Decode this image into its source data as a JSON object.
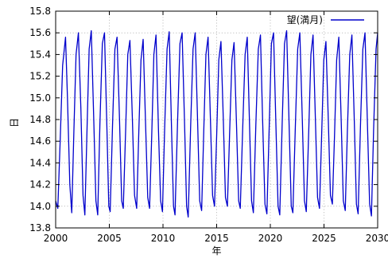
{
  "chart_data": {
    "type": "line",
    "title": "",
    "xlabel": "年",
    "ylabel": "日",
    "xlim": [
      2000,
      2030
    ],
    "ylim": [
      13.8,
      15.8
    ],
    "x_ticks": [
      "2000",
      "2005",
      "2010",
      "2015",
      "2020",
      "2025",
      "2030"
    ],
    "y_ticks": [
      "13.8",
      "14.0",
      "14.2",
      "14.4",
      "14.6",
      "14.8",
      "15.0",
      "15.2",
      "15.4",
      "15.6",
      "15.8"
    ],
    "grid": true,
    "legend_position": "top-right",
    "series": [
      {
        "name": "望(満月)",
        "color": "#0000cc",
        "points": [
          [
            2000.0,
            14.05
          ],
          [
            2000.2,
            13.98
          ],
          [
            2000.42,
            14.6
          ],
          [
            2000.65,
            15.3
          ],
          [
            2000.92,
            15.56
          ],
          [
            2001.1,
            15.0
          ],
          [
            2001.32,
            14.2
          ],
          [
            2001.5,
            13.94
          ],
          [
            2001.7,
            14.7
          ],
          [
            2001.9,
            15.4
          ],
          [
            2002.12,
            15.6
          ],
          [
            2002.35,
            14.9
          ],
          [
            2002.55,
            14.1
          ],
          [
            2002.72,
            13.92
          ],
          [
            2002.92,
            14.7
          ],
          [
            2003.12,
            15.45
          ],
          [
            2003.32,
            15.62
          ],
          [
            2003.55,
            14.8
          ],
          [
            2003.75,
            14.05
          ],
          [
            2003.92,
            13.92
          ],
          [
            2004.12,
            14.75
          ],
          [
            2004.35,
            15.5
          ],
          [
            2004.55,
            15.6
          ],
          [
            2004.78,
            14.7
          ],
          [
            2004.95,
            14.0
          ],
          [
            2005.08,
            13.95
          ],
          [
            2005.3,
            14.75
          ],
          [
            2005.52,
            15.45
          ],
          [
            2005.72,
            15.56
          ],
          [
            2005.95,
            14.8
          ],
          [
            2006.15,
            14.05
          ],
          [
            2006.3,
            13.98
          ],
          [
            2006.52,
            14.7
          ],
          [
            2006.72,
            15.4
          ],
          [
            2006.92,
            15.53
          ],
          [
            2007.15,
            14.8
          ],
          [
            2007.35,
            14.1
          ],
          [
            2007.55,
            13.98
          ],
          [
            2007.75,
            14.7
          ],
          [
            2007.95,
            15.35
          ],
          [
            2008.15,
            15.54
          ],
          [
            2008.38,
            14.75
          ],
          [
            2008.58,
            14.08
          ],
          [
            2008.75,
            13.98
          ],
          [
            2008.95,
            14.65
          ],
          [
            2009.15,
            15.4
          ],
          [
            2009.35,
            15.58
          ],
          [
            2009.58,
            14.7
          ],
          [
            2009.78,
            14.05
          ],
          [
            2009.95,
            13.95
          ],
          [
            2010.15,
            14.7
          ],
          [
            2010.38,
            15.45
          ],
          [
            2010.58,
            15.61
          ],
          [
            2010.8,
            14.7
          ],
          [
            2010.98,
            14.0
          ],
          [
            2011.12,
            13.92
          ],
          [
            2011.35,
            14.75
          ],
          [
            2011.58,
            15.5
          ],
          [
            2011.78,
            15.6
          ],
          [
            2012.0,
            14.8
          ],
          [
            2012.2,
            14.0
          ],
          [
            2012.35,
            13.9
          ],
          [
            2012.58,
            14.75
          ],
          [
            2012.8,
            15.45
          ],
          [
            2013.0,
            15.6
          ],
          [
            2013.22,
            14.8
          ],
          [
            2013.42,
            14.05
          ],
          [
            2013.6,
            13.96
          ],
          [
            2013.8,
            14.7
          ],
          [
            2014.0,
            15.4
          ],
          [
            2014.2,
            15.56
          ],
          [
            2014.42,
            14.8
          ],
          [
            2014.62,
            14.1
          ],
          [
            2014.8,
            14.0
          ],
          [
            2015.0,
            14.65
          ],
          [
            2015.2,
            15.35
          ],
          [
            2015.4,
            15.52
          ],
          [
            2015.62,
            14.8
          ],
          [
            2015.82,
            14.08
          ],
          [
            2016.0,
            14.0
          ],
          [
            2016.2,
            14.65
          ],
          [
            2016.42,
            15.35
          ],
          [
            2016.62,
            15.51
          ],
          [
            2016.85,
            14.75
          ],
          [
            2017.05,
            14.05
          ],
          [
            2017.2,
            13.98
          ],
          [
            2017.42,
            14.7
          ],
          [
            2017.65,
            15.4
          ],
          [
            2017.85,
            15.56
          ],
          [
            2018.05,
            14.8
          ],
          [
            2018.25,
            14.05
          ],
          [
            2018.42,
            13.94
          ],
          [
            2018.65,
            14.75
          ],
          [
            2018.88,
            15.45
          ],
          [
            2019.08,
            15.58
          ],
          [
            2019.28,
            14.8
          ],
          [
            2019.5,
            14.02
          ],
          [
            2019.68,
            13.93
          ],
          [
            2019.9,
            14.75
          ],
          [
            2020.1,
            15.5
          ],
          [
            2020.3,
            15.6
          ],
          [
            2020.52,
            14.75
          ],
          [
            2020.72,
            14.0
          ],
          [
            2020.88,
            13.92
          ],
          [
            2021.1,
            14.75
          ],
          [
            2021.32,
            15.5
          ],
          [
            2021.52,
            15.62
          ],
          [
            2021.75,
            14.75
          ],
          [
            2021.95,
            14.0
          ],
          [
            2022.1,
            13.94
          ],
          [
            2022.32,
            14.7
          ],
          [
            2022.55,
            15.45
          ],
          [
            2022.75,
            15.6
          ],
          [
            2022.98,
            14.8
          ],
          [
            2023.18,
            14.05
          ],
          [
            2023.35,
            13.95
          ],
          [
            2023.58,
            14.7
          ],
          [
            2023.78,
            15.4
          ],
          [
            2023.98,
            15.58
          ],
          [
            2024.2,
            14.8
          ],
          [
            2024.4,
            14.08
          ],
          [
            2024.58,
            13.98
          ],
          [
            2024.78,
            14.65
          ],
          [
            2024.98,
            15.35
          ],
          [
            2025.18,
            15.52
          ],
          [
            2025.4,
            14.8
          ],
          [
            2025.6,
            14.1
          ],
          [
            2025.78,
            14.02
          ],
          [
            2025.98,
            14.65
          ],
          [
            2026.18,
            15.35
          ],
          [
            2026.38,
            15.56
          ],
          [
            2026.6,
            14.8
          ],
          [
            2026.8,
            14.05
          ],
          [
            2026.98,
            13.96
          ],
          [
            2027.18,
            14.7
          ],
          [
            2027.4,
            15.4
          ],
          [
            2027.6,
            15.58
          ],
          [
            2027.82,
            14.8
          ],
          [
            2028.02,
            14.02
          ],
          [
            2028.18,
            13.93
          ],
          [
            2028.4,
            14.75
          ],
          [
            2028.62,
            15.45
          ],
          [
            2028.82,
            15.6
          ],
          [
            2029.05,
            14.75
          ],
          [
            2029.25,
            14.02
          ],
          [
            2029.42,
            13.91
          ],
          [
            2029.62,
            14.7
          ],
          [
            2029.85,
            15.45
          ],
          [
            2030.0,
            15.6
          ]
        ]
      }
    ]
  }
}
